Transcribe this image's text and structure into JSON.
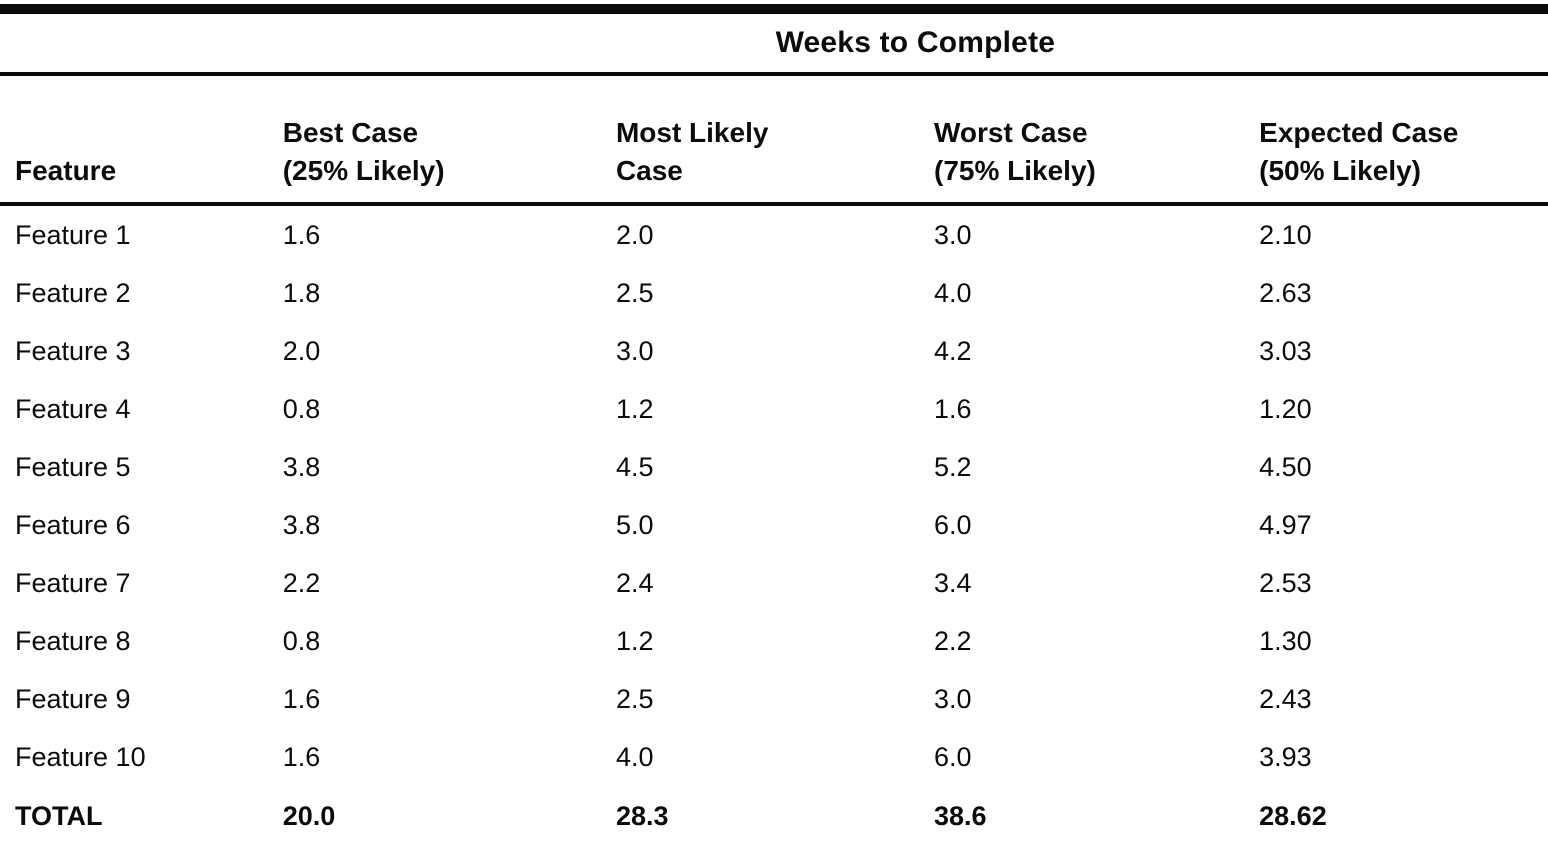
{
  "table": {
    "spanner_title": "Weeks to Complete",
    "columns": [
      {
        "key": "feature",
        "lines": [
          "Feature"
        ]
      },
      {
        "key": "best",
        "lines": [
          "Best Case",
          "(25% Likely)"
        ]
      },
      {
        "key": "most",
        "lines": [
          "Most Likely",
          "Case"
        ]
      },
      {
        "key": "worst",
        "lines": [
          "Worst Case",
          "(75% Likely)"
        ]
      },
      {
        "key": "expected",
        "lines": [
          "Expected Case",
          "(50% Likely)"
        ]
      }
    ],
    "rows": [
      {
        "feature": "Feature 1",
        "best": "1.6",
        "most": "2.0",
        "worst": "3.0",
        "expected": "2.10"
      },
      {
        "feature": "Feature 2",
        "best": "1.8",
        "most": "2.5",
        "worst": "4.0",
        "expected": "2.63"
      },
      {
        "feature": "Feature 3",
        "best": "2.0",
        "most": "3.0",
        "worst": "4.2",
        "expected": "3.03"
      },
      {
        "feature": "Feature 4",
        "best": "0.8",
        "most": "1.2",
        "worst": "1.6",
        "expected": "1.20"
      },
      {
        "feature": "Feature 5",
        "best": "3.8",
        "most": "4.5",
        "worst": "5.2",
        "expected": "4.50"
      },
      {
        "feature": "Feature 6",
        "best": "3.8",
        "most": "5.0",
        "worst": "6.0",
        "expected": "4.97"
      },
      {
        "feature": "Feature 7",
        "best": "2.2",
        "most": "2.4",
        "worst": "3.4",
        "expected": "2.53"
      },
      {
        "feature": "Feature 8",
        "best": "0.8",
        "most": "1.2",
        "worst": "2.2",
        "expected": "1.30"
      },
      {
        "feature": "Feature 9",
        "best": "1.6",
        "most": "2.5",
        "worst": "3.0",
        "expected": "2.43"
      },
      {
        "feature": "Feature 10",
        "best": "1.6",
        "most": "4.0",
        "worst": "6.0",
        "expected": "3.93"
      }
    ],
    "total_row": {
      "feature": "TOTAL",
      "best": "20.0",
      "most": "28.3",
      "worst": "38.6",
      "expected": "28.62"
    }
  }
}
